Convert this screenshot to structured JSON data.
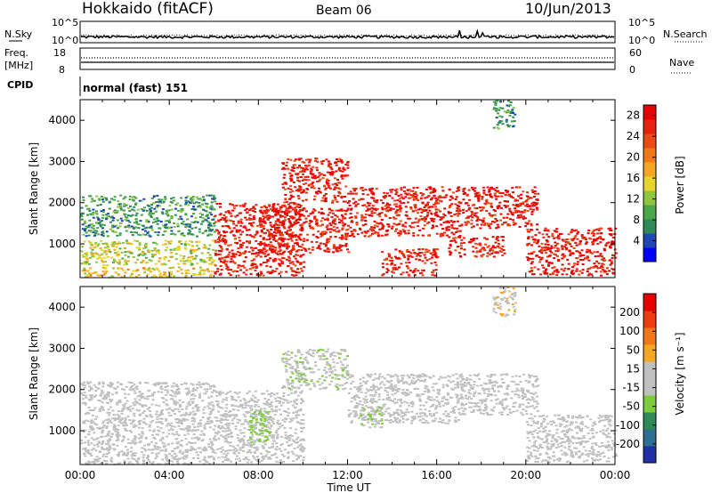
{
  "header": {
    "radar": "Hokkaido (fitACF)",
    "beam": "Beam 06",
    "date": "10/Jun/2013"
  },
  "strips": {
    "nsky_label": "N.Sky",
    "nsky_ticks": [
      "10^5",
      "10^0"
    ],
    "nsearch_label": "N.Search",
    "nsearch_ticks": [
      "10^5",
      "10^0"
    ],
    "freq_label_1": "Freq.",
    "freq_label_2": "[MHz]",
    "freq_ticks": [
      "18",
      "8"
    ],
    "nave_label": "Nave",
    "nave_ticks": [
      "60",
      "0"
    ],
    "cpid_label": "CPID",
    "cpid_value": "normal (fast) 151"
  },
  "chart_data": [
    {
      "type": "heatmap",
      "panel": "power",
      "xlabel": "Time UT",
      "ylabel": "Slant Range [km]",
      "x_ticks": [
        "00:00",
        "04:00",
        "08:00",
        "12:00",
        "16:00",
        "20:00",
        "00:00"
      ],
      "xlim": [
        0,
        24
      ],
      "y_ticks": [
        "1000",
        "2000",
        "3000",
        "4000"
      ],
      "ylim": [
        180,
        4500
      ],
      "colorbar": {
        "label": "Power [dB]",
        "ticks": [
          "4",
          "8",
          "12",
          "16",
          "20",
          "24",
          "28"
        ],
        "range": [
          0,
          30
        ],
        "colors": [
          "#0000ff",
          "#1e46b4",
          "#2e8b57",
          "#4aa84a",
          "#8ec63f",
          "#e6d42a",
          "#f5a623",
          "#f07818",
          "#ec4a14",
          "#e8200e",
          "#e60000"
        ]
      },
      "regions": [
        {
          "t": [
            0,
            6
          ],
          "r": [
            200,
            450
          ],
          "v": 16
        },
        {
          "t": [
            0,
            6
          ],
          "r": [
            500,
            1100
          ],
          "v": 14
        },
        {
          "t": [
            0,
            6
          ],
          "r": [
            1200,
            2200
          ],
          "v": 8
        },
        {
          "t": [
            6,
            10
          ],
          "r": [
            250,
            2000
          ],
          "v": 27
        },
        {
          "t": [
            8,
            12
          ],
          "r": [
            800,
            1900
          ],
          "v": 27
        },
        {
          "t": [
            9,
            12
          ],
          "r": [
            2000,
            3100
          ],
          "v": 27
        },
        {
          "t": [
            12,
            17
          ],
          "r": [
            1200,
            2400
          ],
          "v": 27
        },
        {
          "t": [
            13.5,
            16
          ],
          "r": [
            250,
            900
          ],
          "v": 26
        },
        {
          "t": [
            16.5,
            19
          ],
          "r": [
            700,
            1200
          ],
          "v": 27
        },
        {
          "t": [
            17,
            20.5
          ],
          "r": [
            1400,
            2400
          ],
          "v": 27
        },
        {
          "t": [
            20,
            24
          ],
          "r": [
            250,
            1400
          ],
          "v": 27
        },
        {
          "t": [
            18.5,
            19.5
          ],
          "r": [
            3800,
            4500
          ],
          "v": 8
        }
      ]
    },
    {
      "type": "heatmap",
      "panel": "velocity",
      "xlabel": "Time UT",
      "ylabel": "Slant Range [km]",
      "x_ticks": [
        "00:00",
        "04:00",
        "08:00",
        "12:00",
        "16:00",
        "20:00",
        "00:00"
      ],
      "xlim": [
        0,
        24
      ],
      "y_ticks": [
        "1000",
        "2000",
        "3000",
        "4000"
      ],
      "ylim": [
        180,
        4500
      ],
      "colorbar": {
        "label": "Velocity [m s⁻¹]",
        "ticks": [
          "200",
          "100",
          "50",
          "15",
          "-15",
          "-50",
          "-100",
          "-200"
        ],
        "range": [
          -250,
          250
        ],
        "colors": [
          "#1f2fa8",
          "#2e6e8e",
          "#2e8b57",
          "#7ccd3a",
          "#c0c0c0",
          "#c0c0c0",
          "#f5a623",
          "#f07818",
          "#ec3c10",
          "#e60000"
        ]
      },
      "regions": [
        {
          "t": [
            0,
            6
          ],
          "r": [
            200,
            2200
          ],
          "v": 0
        },
        {
          "t": [
            6,
            10
          ],
          "r": [
            250,
            2000
          ],
          "v": 0
        },
        {
          "t": [
            7.5,
            8.5
          ],
          "r": [
            700,
            1500
          ],
          "v": -60
        },
        {
          "t": [
            9,
            12
          ],
          "r": [
            2000,
            3000
          ],
          "v": -40
        },
        {
          "t": [
            12,
            17
          ],
          "r": [
            1200,
            2400
          ],
          "v": 0
        },
        {
          "t": [
            12.5,
            13.5
          ],
          "r": [
            1100,
            1600
          ],
          "v": -50
        },
        {
          "t": [
            17,
            20.5
          ],
          "r": [
            1400,
            2400
          ],
          "v": 0
        },
        {
          "t": [
            20,
            24
          ],
          "r": [
            250,
            1400
          ],
          "v": 0
        },
        {
          "t": [
            18.5,
            19.5
          ],
          "r": [
            3800,
            4500
          ],
          "v": 40
        }
      ]
    }
  ]
}
